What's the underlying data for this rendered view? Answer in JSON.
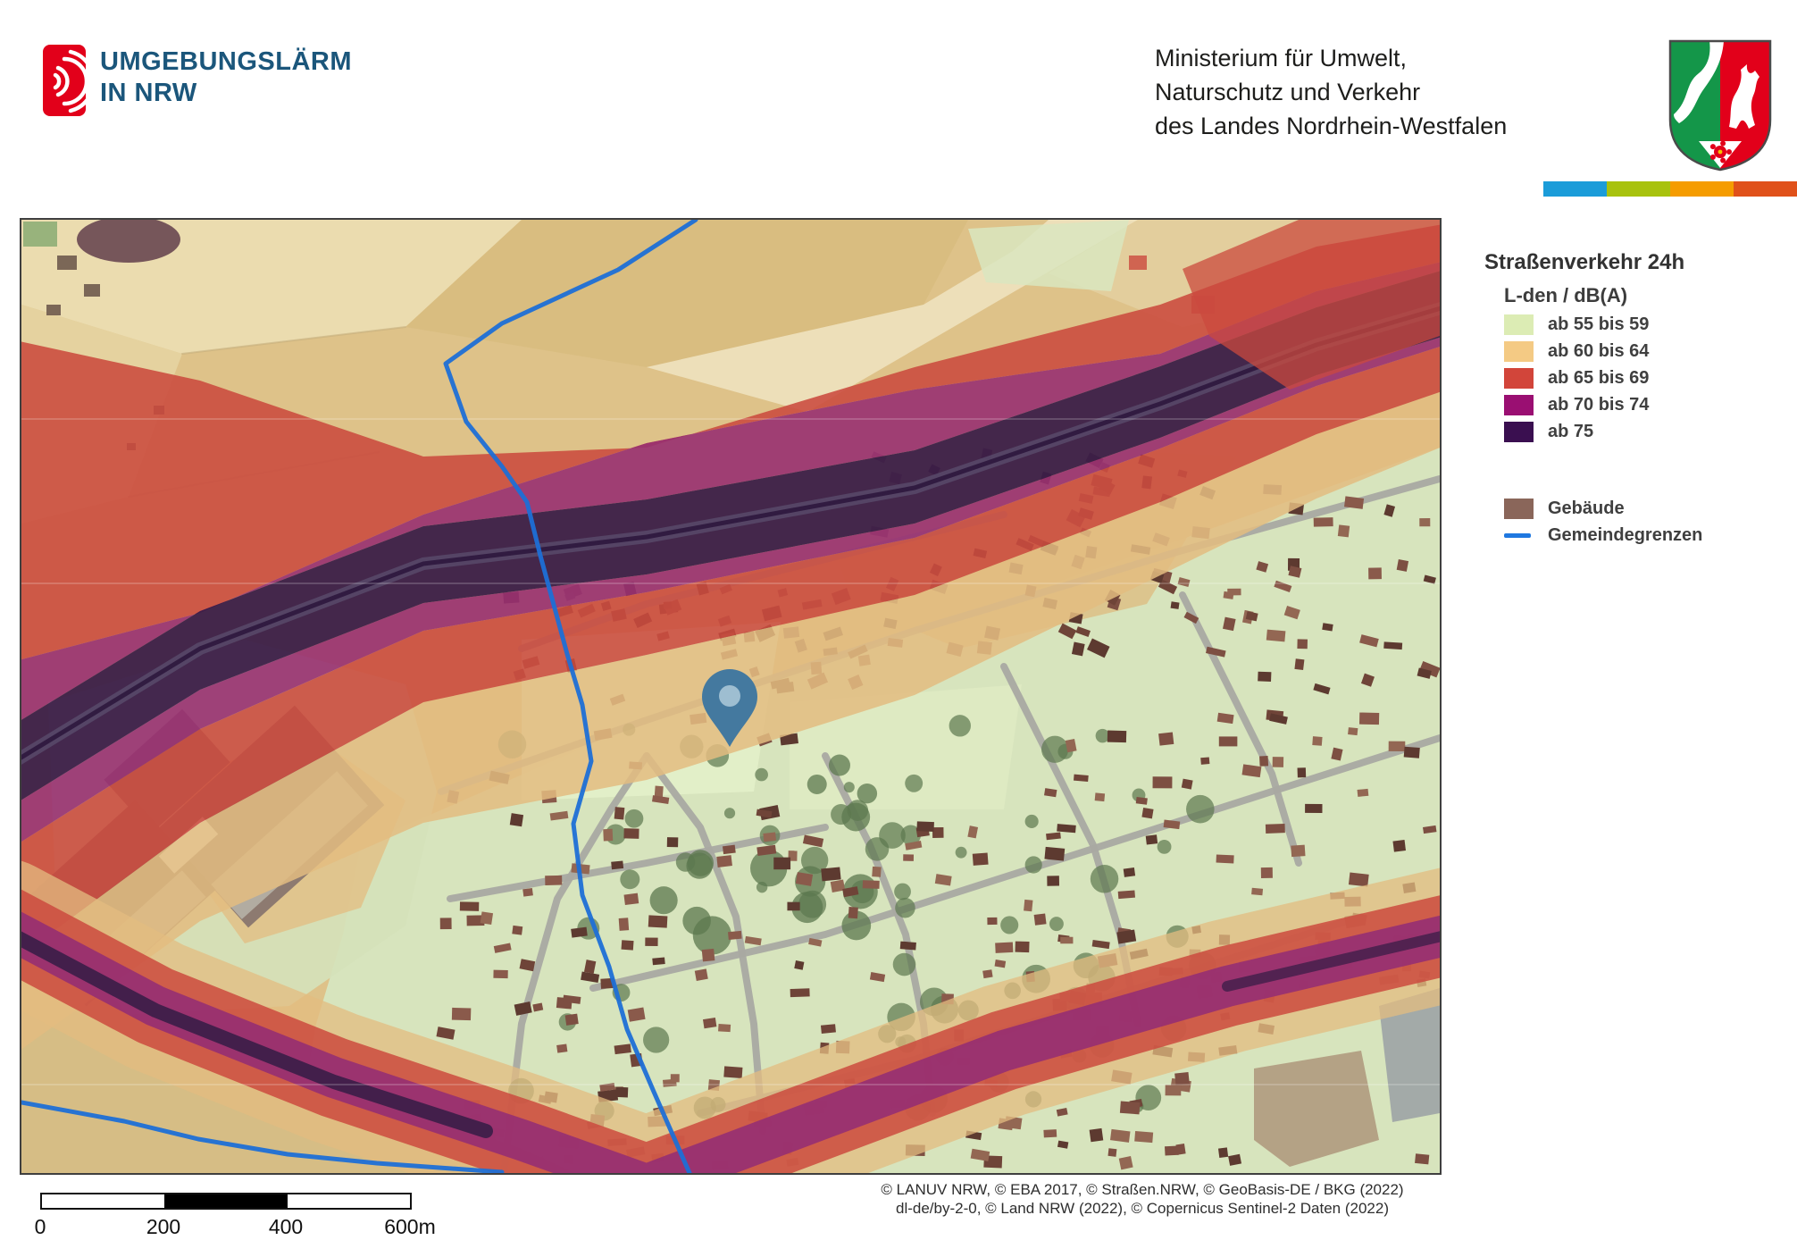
{
  "header": {
    "logo": {
      "line1": "UMGEBUNGSLÄRM",
      "line2": "IN NRW",
      "icon_color": "#e2001a",
      "text_color": "#1b567b"
    },
    "ministry_lines": [
      "Ministerium für Umwelt,",
      "Naturschutz und Verkehr",
      "des Landes Nordrhein-Westfalen"
    ],
    "stripe_colors": [
      "#1b9cd9",
      "#a8c20e",
      "#f59c00",
      "#e0511a"
    ],
    "coat_of_arms": {
      "green": "#149649",
      "red": "#e2001a",
      "white": "#ffffff",
      "outline": "#4a4a4a"
    }
  },
  "legend": {
    "title": "Straßenverkehr 24h",
    "subtitle": "L-den / dB(A)",
    "classes": [
      {
        "label": "ab 55 bis 59",
        "color": "#dcecb4"
      },
      {
        "label": "ab 60 bis 64",
        "color": "#f4ca84"
      },
      {
        "label": "ab 65 bis 69",
        "color": "#d2453a"
      },
      {
        "label": "ab 70 bis 74",
        "color": "#9a0f72"
      },
      {
        "label": "ab 75",
        "color": "#3a0f50"
      }
    ],
    "other": [
      {
        "label": "Gebäude",
        "color": "#8a665a",
        "type": "swatch"
      },
      {
        "label": "Gemeindegrenzen",
        "color": "#1f78e0",
        "type": "line"
      }
    ]
  },
  "map": {
    "marker": {
      "name": "location-pin",
      "color": "#44799f",
      "inner_color": "#a3c2d4"
    },
    "boundary_color": "#1d6fd6",
    "palette": {
      "field": "#dec289",
      "field_pale": "#ecdfb4",
      "field_dark": "#d8bc80",
      "field_light": "#f0e4c2",
      "green_base": "#d7e4bd",
      "green_open": "#e3efc9",
      "orange_band": "#e3bc80",
      "red_band": "#cb4a3e",
      "purple_band": "#983071",
      "dark_band": "#3a1d47",
      "rail_line": "#5d5170",
      "rail_core": "#281238",
      "street": "#a9a9a2",
      "tree": "#5c784f",
      "houses": [
        "#7d4f42",
        "#8a5a4b",
        "#6f4438",
        "#936753",
        "#5d3a30"
      ],
      "industrial_roof": "#8d7a70",
      "industrial_light": "#b2aca1",
      "soil": "#b09a7e",
      "parking": "#9aa0a4"
    }
  },
  "scalebar": {
    "labels": [
      "0",
      "200",
      "400",
      "600m"
    ],
    "segment_fills": [
      "#ffffff",
      "#000000",
      "#ffffff"
    ]
  },
  "attribution": {
    "line1": "© LANUV NRW, © EBA 2017, © Straßen.NRW, © GeoBasis-DE / BKG (2022)",
    "line2": "dl-de/by-2-0, © Land NRW (2022), © Copernicus Sentinel-2 Daten (2022)"
  }
}
